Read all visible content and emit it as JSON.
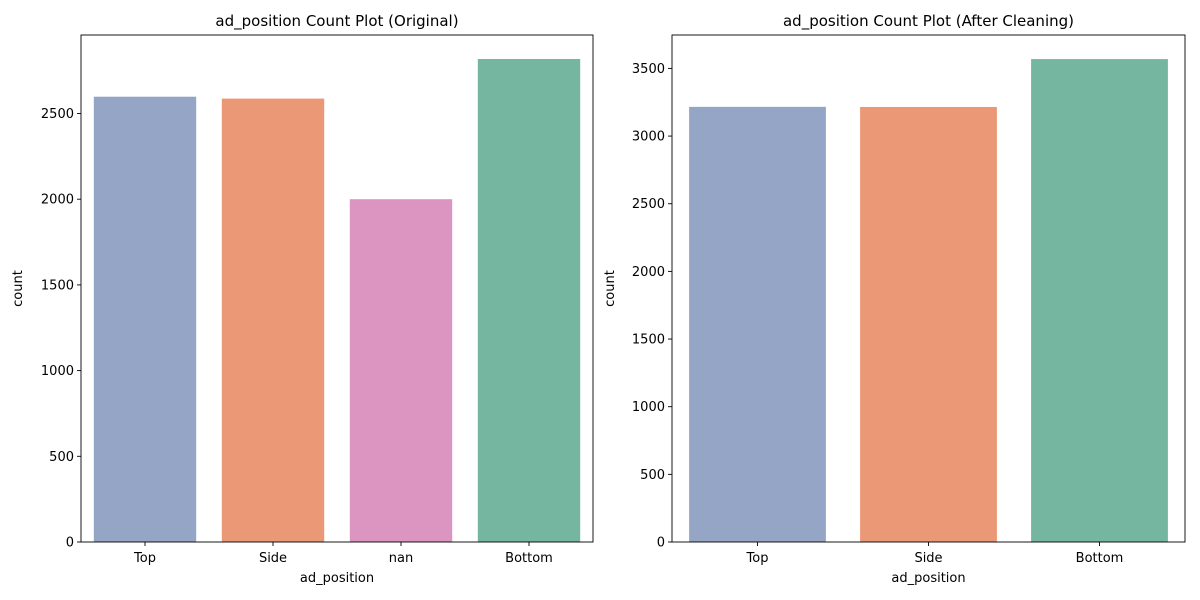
{
  "chart_data": [
    {
      "type": "bar",
      "title": "ad_position Count Plot (Original)",
      "xlabel": "ad_position",
      "ylabel": "count",
      "categories": [
        "Top",
        "Side",
        "nan",
        "Bottom"
      ],
      "values": [
        2598,
        2587,
        2000,
        2818
      ],
      "colors": [
        "#95a5c5",
        "#ea9875",
        "#dc95c0",
        "#75b6a1"
      ],
      "ylim": [
        0,
        2958
      ],
      "yticks": [
        0,
        500,
        1000,
        1500,
        2000,
        2500
      ],
      "grid": false
    },
    {
      "type": "bar",
      "title": "ad_position Count Plot (After Cleaning)",
      "xlabel": "ad_position",
      "ylabel": "count",
      "categories": [
        "Top",
        "Side",
        "Bottom"
      ],
      "values": [
        3216,
        3215,
        3569
      ],
      "colors": [
        "#95a5c5",
        "#ea9875",
        "#75b6a1"
      ],
      "ylim": [
        0,
        3747
      ],
      "yticks": [
        0,
        500,
        1000,
        1500,
        2000,
        2500,
        3000,
        3500
      ],
      "grid": false
    }
  ]
}
